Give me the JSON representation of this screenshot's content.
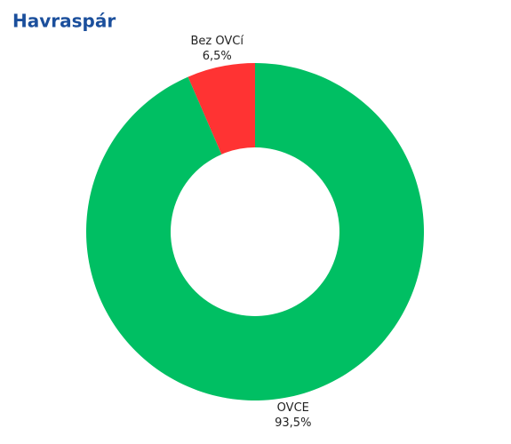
{
  "chart_data": {
    "type": "donut",
    "title": "Havraspár",
    "categories": [
      "Bez OVCí",
      "OVCE"
    ],
    "values": [
      6.5,
      93.5
    ],
    "value_labels": [
      "6,5%",
      "93,5%"
    ],
    "colors": [
      "#ff3333",
      "#00bf63"
    ]
  }
}
